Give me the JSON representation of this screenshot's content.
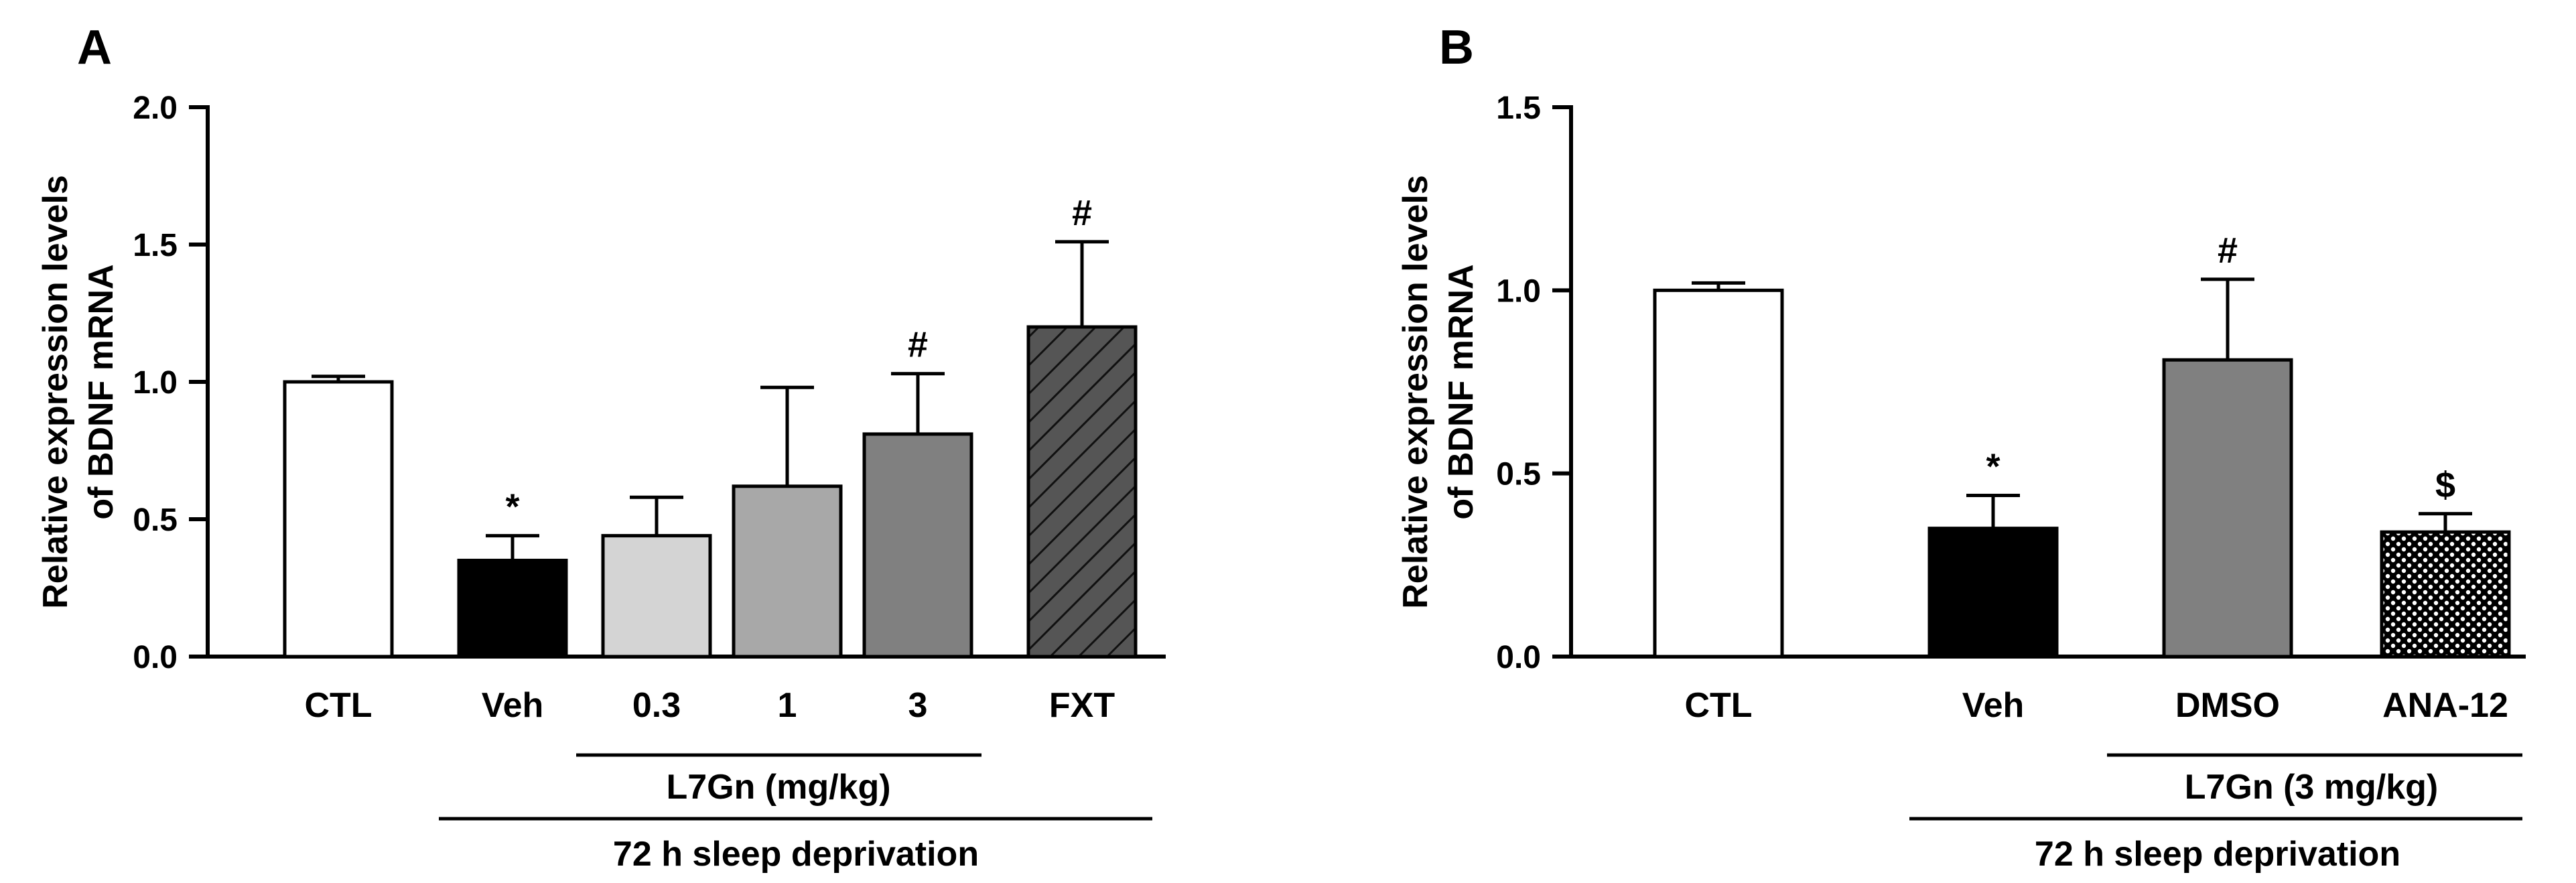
{
  "chart_data": [
    {
      "panel": "A",
      "type": "bar",
      "ylabel": [
        "Relative expression levels",
        "of BDNF mRNA"
      ],
      "ylim": [
        0,
        2.0
      ],
      "yticks": [
        "0.0",
        "0.5",
        "1.0",
        "1.5",
        "2.0"
      ],
      "categories": [
        "CTL",
        "Veh",
        "0.3",
        "1",
        "3",
        "FXT"
      ],
      "values": [
        1.0,
        0.35,
        0.44,
        0.62,
        0.81,
        1.2
      ],
      "errors": [
        0.02,
        0.09,
        0.14,
        0.36,
        0.22,
        0.31
      ],
      "significance": [
        "",
        "*",
        "",
        "",
        "#",
        "#"
      ],
      "fills": [
        "#ffffff",
        "#000000",
        "#d4d4d4",
        "#a8a8a8",
        "#808080",
        "hatch"
      ],
      "group_labels": {
        "dose_group": "L7Gn (mg/kg)",
        "treatment": "72 h sleep deprivation"
      }
    },
    {
      "panel": "B",
      "type": "bar",
      "ylabel": [
        "Relative expression levels",
        "of BDNF mRNA"
      ],
      "ylim": [
        0,
        1.5
      ],
      "yticks": [
        "0.0",
        "0.5",
        "1.0",
        "1.5"
      ],
      "categories": [
        "CTL",
        "Veh",
        "DMSO",
        "ANA-12"
      ],
      "values": [
        1.0,
        0.35,
        0.81,
        0.34
      ],
      "errors": [
        0.02,
        0.09,
        0.22,
        0.05
      ],
      "significance": [
        "",
        "*",
        "#",
        "$"
      ],
      "fills": [
        "#ffffff",
        "#000000",
        "#808080",
        "dots"
      ],
      "group_labels": {
        "dose_group": "L7Gn (3 mg/kg)",
        "treatment": "72 h sleep deprivation"
      }
    }
  ]
}
